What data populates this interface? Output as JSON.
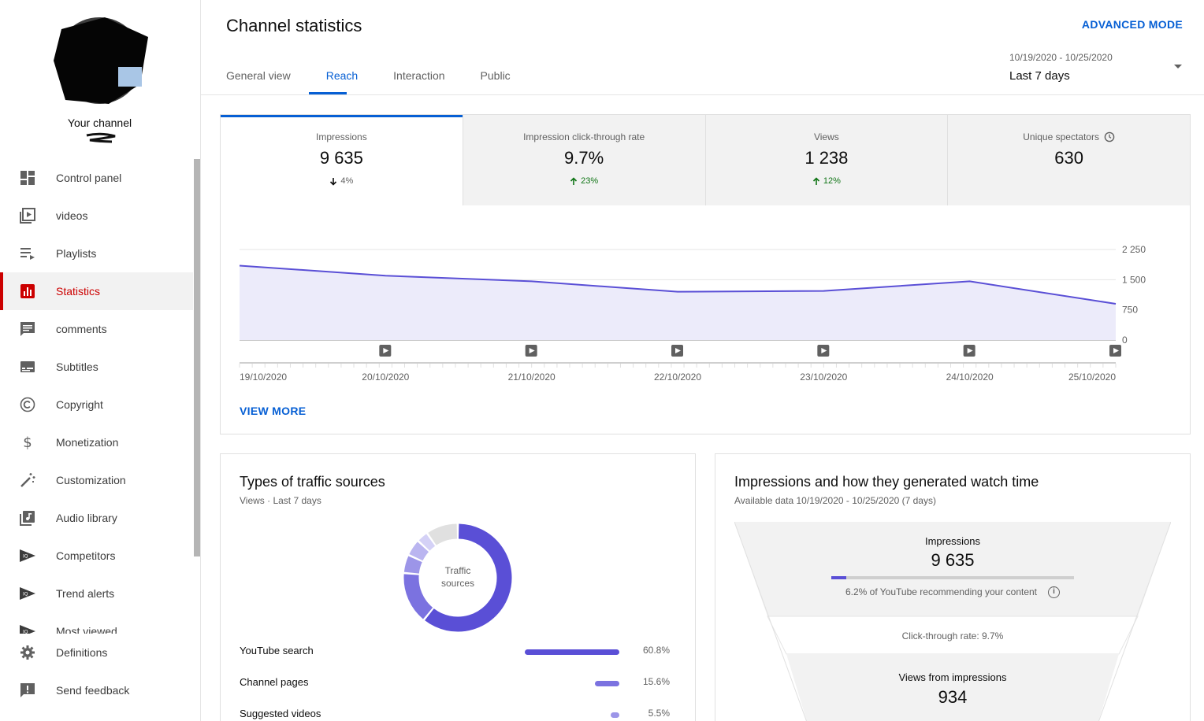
{
  "sidebar": {
    "channel_label": "Your channel",
    "items": [
      {
        "label": "Control panel",
        "icon": "dashboard-icon"
      },
      {
        "label": "videos",
        "icon": "videos-icon"
      },
      {
        "label": "Playlists",
        "icon": "playlists-icon"
      },
      {
        "label": "Statistics",
        "icon": "statistics-icon",
        "active": true
      },
      {
        "label": "comments",
        "icon": "comments-icon"
      },
      {
        "label": "Subtitles",
        "icon": "subtitles-icon"
      },
      {
        "label": "Copyright",
        "icon": "copyright-icon"
      },
      {
        "label": "Monetization",
        "icon": "dollar-icon"
      },
      {
        "label": "Customization",
        "icon": "magic-wand-icon"
      },
      {
        "label": "Audio library",
        "icon": "audio-library-icon"
      },
      {
        "label": "Competitors",
        "icon": "vidiq-icon"
      },
      {
        "label": "Trend alerts",
        "icon": "vidiq-icon"
      },
      {
        "label": "Most viewed",
        "icon": "vidiq-icon"
      }
    ],
    "bottom_items": [
      {
        "label": "Definitions",
        "icon": "gear-icon"
      },
      {
        "label": "Send feedback",
        "icon": "feedback-icon"
      }
    ]
  },
  "header": {
    "title": "Channel statistics",
    "advanced_mode": "ADVANCED MODE",
    "tabs": [
      "General view",
      "Reach",
      "Interaction",
      "Public"
    ],
    "active_tab": "Reach",
    "date_range": "10/19/2020 - 10/25/2020",
    "date_preset": "Last 7 days"
  },
  "metrics": [
    {
      "label": "Impressions",
      "value": "9 635",
      "change": "4%",
      "direction": "down"
    },
    {
      "label": "Impression click-through rate",
      "value": "9.7%",
      "change": "23%",
      "direction": "up"
    },
    {
      "label": "Views",
      "value": "1 238",
      "change": "12%",
      "direction": "up"
    },
    {
      "label": "Unique spectators",
      "value": "630",
      "change": "",
      "direction": ""
    }
  ],
  "view_more": "VIEW MORE",
  "chart_data": {
    "type": "area",
    "x": [
      "19/10/2020",
      "20/10/2020",
      "21/10/2020",
      "22/10/2020",
      "23/10/2020",
      "24/10/2020",
      "25/10/2020"
    ],
    "series": [
      {
        "values": [
          1850,
          1600,
          1460,
          1200,
          1220,
          1460,
          900
        ]
      }
    ],
    "y_ticks": [
      "2 250",
      "1 500",
      "750",
      "0"
    ],
    "ylim": [
      0,
      2250
    ],
    "grid": true,
    "colors": {
      "line": "#5a4fd6",
      "fill": "#ecebfa"
    }
  },
  "traffic": {
    "title": "Types of traffic sources",
    "subtitle": "Views · Last 7 days",
    "donut_label_1": "Traffic",
    "donut_label_2": "sources",
    "sources": [
      {
        "name": "YouTube search",
        "pct": "60.8%",
        "value": 60.8,
        "color": "#5a4fd6"
      },
      {
        "name": "Channel pages",
        "pct": "15.6%",
        "value": 15.6,
        "color": "#7b72e0"
      },
      {
        "name": "Suggested videos",
        "pct": "5.5%",
        "value": 5.5,
        "color": "#9c95e8"
      }
    ],
    "other_segments": [
      {
        "value": 5.0,
        "color": "#bab5f0"
      },
      {
        "value": 3.5,
        "color": "#d4d1f6"
      },
      {
        "value": 9.6,
        "color": "#e0e0e0"
      }
    ]
  },
  "funnel": {
    "title": "Impressions and how they generated watch time",
    "subtitle": "Available data 10/19/2020 - 10/25/2020 (7 days)",
    "impressions_label": "Impressions",
    "impressions_value": "9 635",
    "recommend_text": "6.2% of YouTube recommending your content",
    "recommend_fraction": 0.062,
    "ctr_text": "Click-through rate: 9.7%",
    "views_label": "Views from impressions",
    "views_value": "934"
  }
}
